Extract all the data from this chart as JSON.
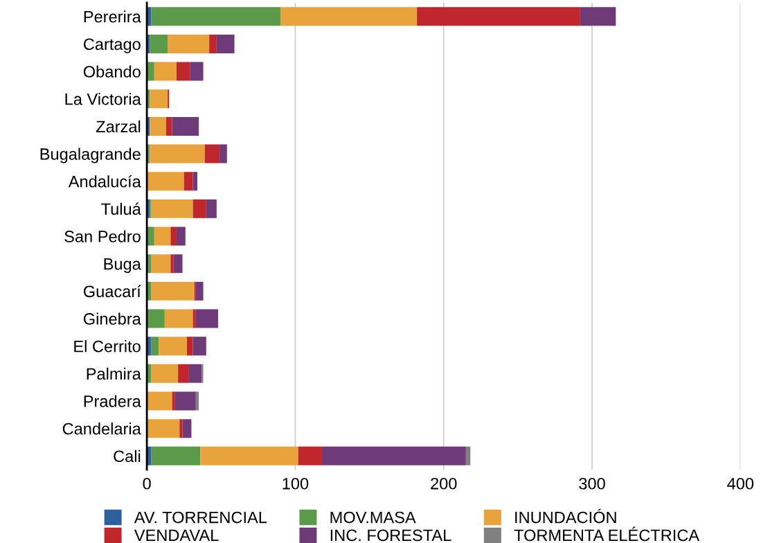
{
  "chart_data": {
    "type": "bar",
    "orientation": "horizontal",
    "stacked": true,
    "categories": [
      "Pererira",
      "Cartago",
      "Obando",
      "La Victoria",
      "Zarzal",
      "Bugalagrande",
      "Andalucía",
      "Tuluá",
      "San Pedro",
      "Buga",
      "Guacarí",
      "Ginebra",
      "El Cerrito",
      "Palmira",
      "Pradera",
      "Candelaria",
      "Cali"
    ],
    "series": [
      {
        "name": "AV. TORRENCIAL",
        "color": "#2e5f9e",
        "values": [
          3,
          2,
          0,
          0,
          2,
          1,
          0,
          2,
          0,
          1,
          0,
          0,
          3,
          0,
          0,
          0,
          3
        ]
      },
      {
        "name": "MOV.MASA",
        "color": "#5b9a48",
        "values": [
          87,
          12,
          5,
          2,
          0,
          1,
          0,
          1,
          5,
          2,
          3,
          12,
          5,
          3,
          0,
          0,
          33
        ]
      },
      {
        "name": "INUNDACIÓN",
        "color": "#e8a33d",
        "values": [
          92,
          28,
          15,
          12,
          11,
          37,
          25,
          28,
          11,
          13,
          29,
          19,
          19,
          18,
          17,
          22,
          66
        ]
      },
      {
        "name": "VENDAVAL",
        "color": "#c0272d",
        "values": [
          110,
          5,
          9,
          1,
          4,
          10,
          6,
          9,
          4,
          2,
          1,
          2,
          4,
          7,
          2,
          2,
          16
        ]
      },
      {
        "name": "INC. FORESTAL",
        "color": "#6e3b78",
        "values": [
          24,
          12,
          9,
          0,
          18,
          5,
          3,
          7,
          6,
          6,
          5,
          15,
          9,
          9,
          14,
          6,
          97
        ]
      },
      {
        "name": "TORMENTA ELÉCTRICA",
        "color": "#808080",
        "values": [
          0,
          0,
          0,
          0,
          0,
          0,
          0,
          0,
          0,
          0,
          0,
          0,
          0,
          1,
          2,
          0,
          3
        ]
      }
    ],
    "xlim": [
      0,
      400
    ],
    "xticks": [
      0,
      100,
      200,
      300,
      400
    ],
    "grid": "x",
    "legend": "bottom"
  }
}
